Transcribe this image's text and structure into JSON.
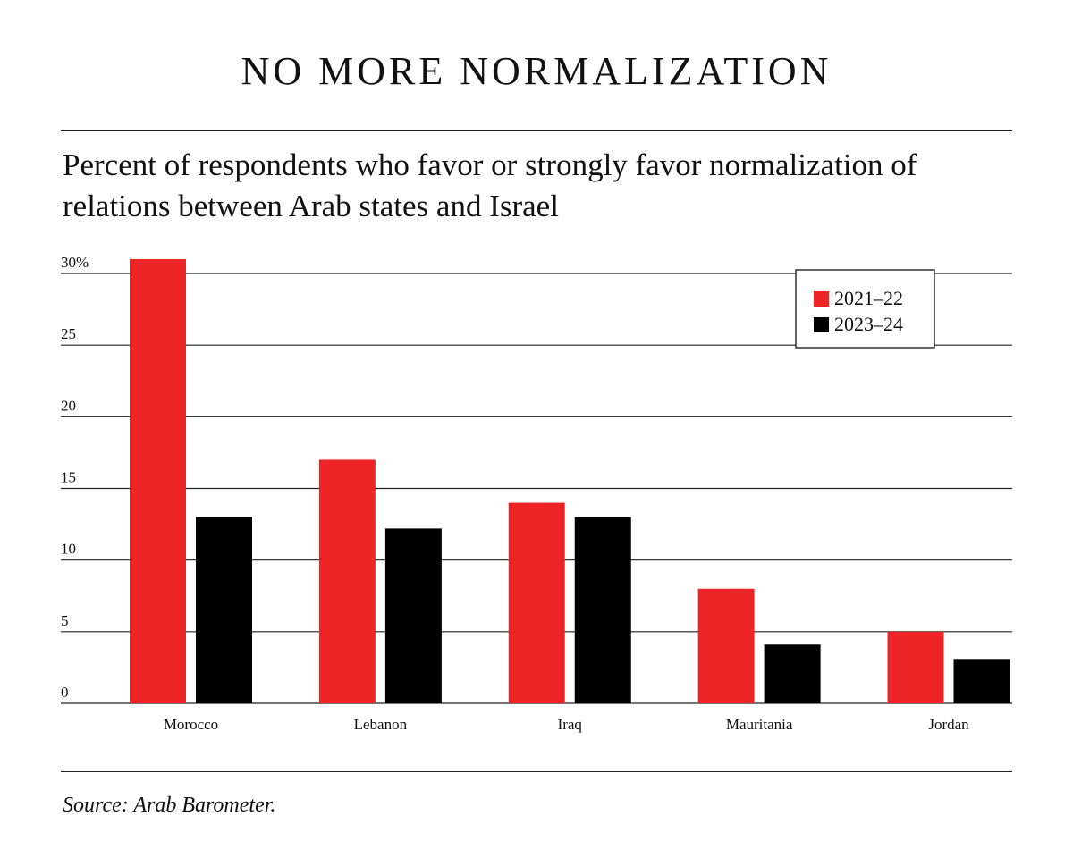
{
  "header": {
    "title": "NO MORE NORMALIZATION",
    "subtitle": "Percent of respondents who favor or strongly favor normalization of relations between Arab states and Israel"
  },
  "footer": {
    "source": "Source: Arab Barometer."
  },
  "chart_data": {
    "type": "bar",
    "title": "NO MORE NORMALIZATION",
    "xlabel": "",
    "ylabel": "",
    "ylim": [
      0,
      30
    ],
    "yticks": [
      0,
      5,
      10,
      15,
      20,
      25,
      30
    ],
    "ytick_labels": [
      "0",
      "5",
      "10",
      "15",
      "20",
      "25",
      "30%"
    ],
    "grid": true,
    "legend_position": "top-right",
    "categories": [
      "Morocco",
      "Lebanon",
      "Iraq",
      "Mauritania",
      "Jordan"
    ],
    "series": [
      {
        "name": "2021–22",
        "color": "#ee2526",
        "values": [
          31,
          17,
          14,
          8,
          5
        ]
      },
      {
        "name": "2023–24",
        "color": "#000000",
        "values": [
          13,
          12.2,
          13,
          4.1,
          3.1
        ]
      }
    ]
  }
}
